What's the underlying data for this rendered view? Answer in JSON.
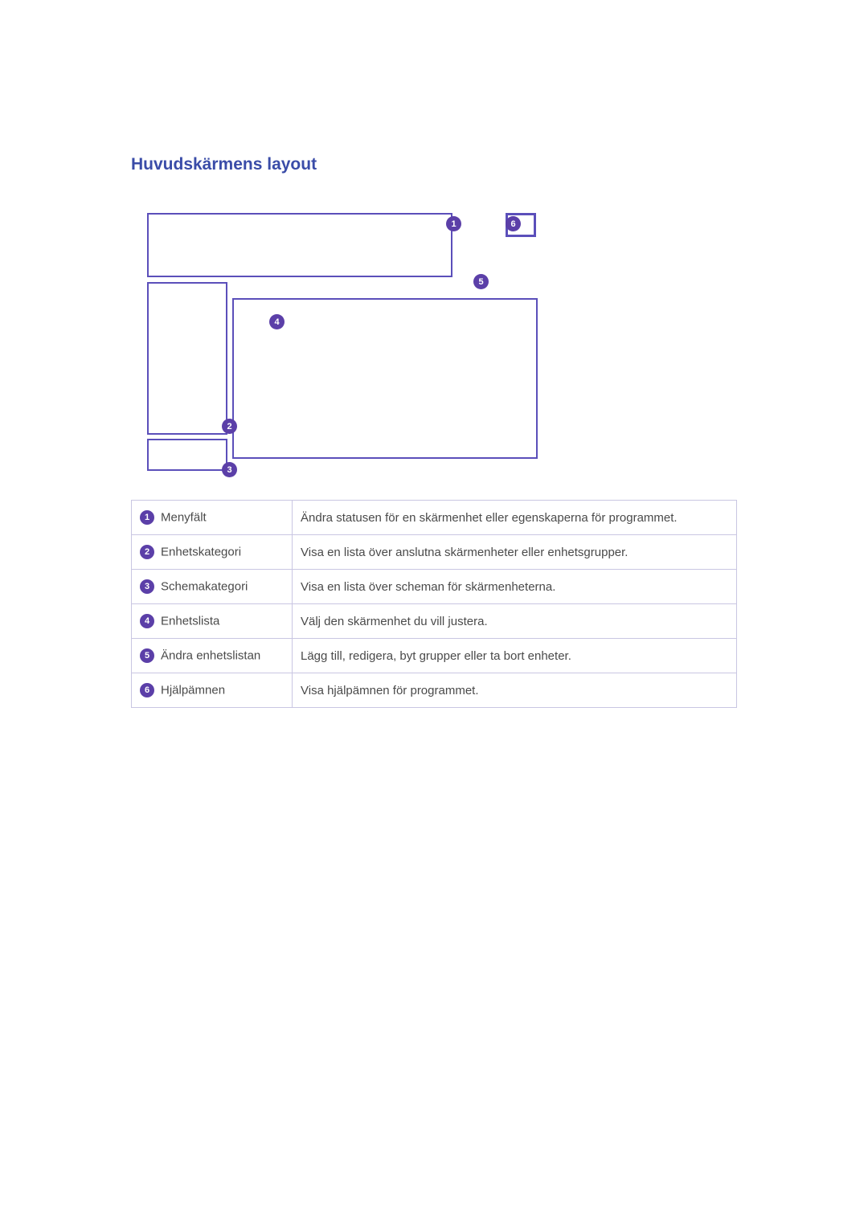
{
  "heading": "Huvudskärmens layout",
  "callouts": {
    "1": "1",
    "2": "2",
    "3": "3",
    "4": "4",
    "5": "5",
    "6": "6"
  },
  "legend": [
    {
      "n": "1",
      "label": "Menyfält",
      "desc": "Ändra statusen för en skärmenhet eller egenskaperna för programmet."
    },
    {
      "n": "2",
      "label": "Enhetskategori",
      "desc": "Visa en lista över anslutna skärmenheter eller enhetsgrupper."
    },
    {
      "n": "3",
      "label": "Schemakategori",
      "desc": "Visa en lista över scheman för skärmenheterna."
    },
    {
      "n": "4",
      "label": "Enhetslista",
      "desc": "Välj den skärmenhet du vill justera."
    },
    {
      "n": "5",
      "label": "Ändra enhetslistan",
      "desc": "Lägg till, redigera, byt grupper eller ta bort enheter."
    },
    {
      "n": "6",
      "label": "Hjälpämnen",
      "desc": "Visa hjälpämnen för programmet."
    }
  ],
  "colors": {
    "heading": "#3a4ca8",
    "box_border": "#5b4fba",
    "badge_bg": "#5b3fa8",
    "table_border": "#c9c6e2",
    "text": "#4a4a4a"
  }
}
